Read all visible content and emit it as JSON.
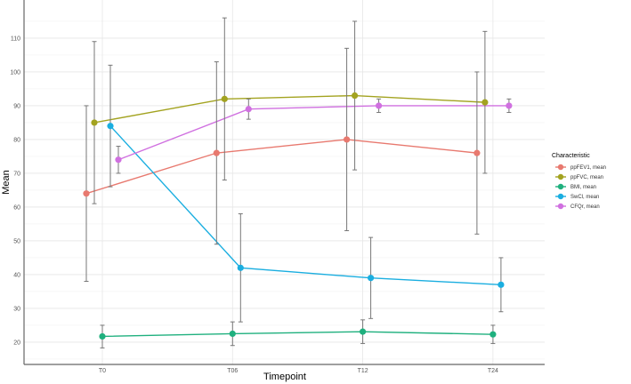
{
  "chart_data": {
    "type": "line",
    "title": "",
    "xlabel": "Timepoint",
    "ylabel": "Mean",
    "categories": [
      "T0",
      "T06",
      "T12",
      "T24"
    ],
    "yticks": [
      20,
      30,
      40,
      50,
      60,
      70,
      80,
      90,
      100,
      110
    ],
    "ylim": [
      13.4,
      121.3
    ],
    "grid": true,
    "legend": {
      "title": "Characteristic",
      "placement": "right"
    },
    "series": [
      {
        "name": "ppFEV1, mean",
        "color": "#E8796F",
        "values": [
          64,
          76,
          80,
          76
        ],
        "lower": [
          38,
          49,
          53,
          52
        ],
        "upper": [
          90,
          103,
          107,
          100
        ]
      },
      {
        "name": "ppFVC, mean",
        "color": "#A3A320",
        "values": [
          85,
          92,
          93,
          91
        ],
        "lower": [
          61,
          68,
          71,
          70
        ],
        "upper": [
          109,
          116,
          115,
          112
        ]
      },
      {
        "name": "BMI, mean",
        "color": "#1FB07E",
        "values": [
          21.7,
          22.5,
          23.1,
          22.3
        ],
        "lower": [
          18.3,
          19,
          19.6,
          19.6
        ],
        "upper": [
          25,
          26,
          26.6,
          25
        ]
      },
      {
        "name": "SwCl, mean",
        "color": "#1AAEE0",
        "values": [
          84,
          42,
          39,
          37
        ],
        "lower": [
          66,
          26,
          27,
          29
        ],
        "upper": [
          102,
          58,
          51,
          45
        ]
      },
      {
        "name": "CFQr, mean",
        "color": "#D070E0",
        "values": [
          74,
          89,
          90,
          90
        ],
        "lower": [
          70,
          86,
          88,
          88
        ],
        "upper": [
          78,
          92,
          92,
          92
        ]
      }
    ]
  }
}
